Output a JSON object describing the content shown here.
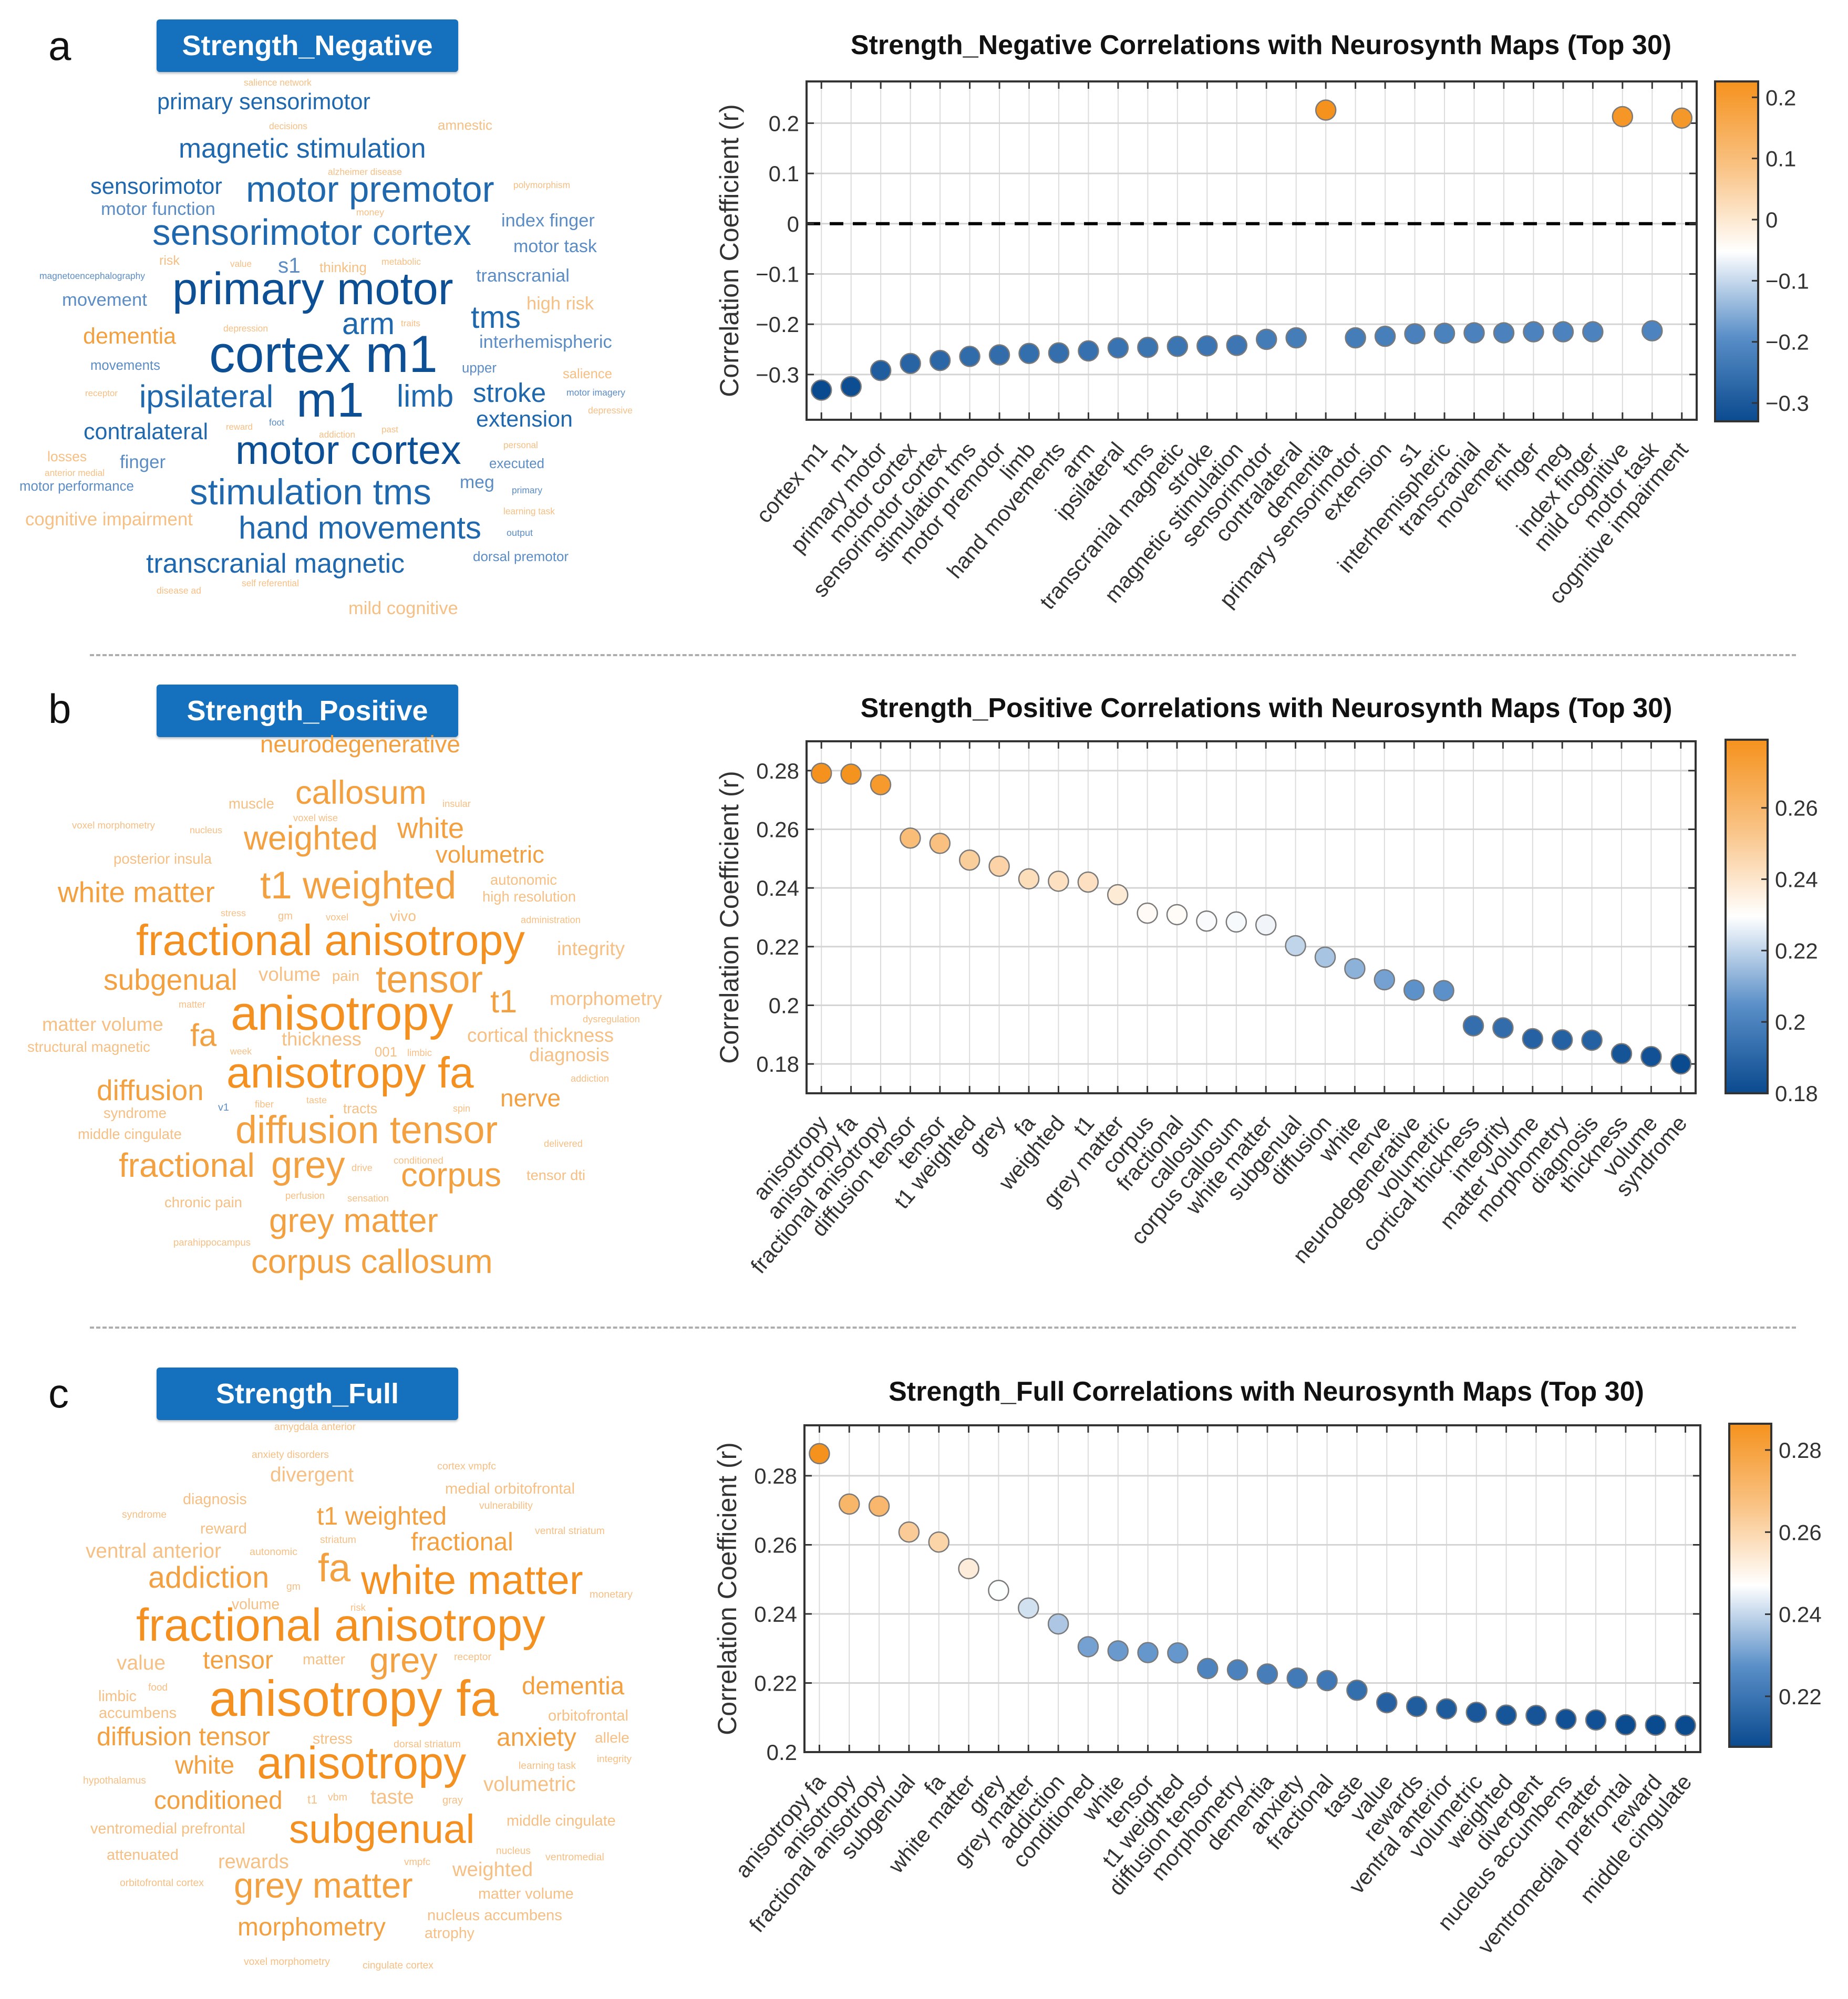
{
  "panels": [
    {
      "letter": "a",
      "badge": "Strength_Negative",
      "cloud": {
        "words": [
          [
            "salience network",
            "o"
          ],
          [
            "primary sensorimotor",
            "b"
          ],
          [
            "decisions",
            "o"
          ],
          [
            "amnestic",
            "o"
          ],
          [
            "magnetic stimulation",
            "b"
          ],
          [
            "alzheimer disease",
            "o"
          ],
          [
            "sensorimotor",
            "b"
          ],
          [
            "motor premotor",
            "b"
          ],
          [
            "polymorphism",
            "o"
          ],
          [
            "motor function",
            "b"
          ],
          [
            "money",
            "o"
          ],
          [
            "index finger",
            "b"
          ],
          [
            "sensorimotor cortex",
            "b"
          ],
          [
            "motor task",
            "b"
          ],
          [
            "risk",
            "o"
          ],
          [
            "value",
            "o"
          ],
          [
            "s1",
            "b"
          ],
          [
            "thinking",
            "o"
          ],
          [
            "metabolic",
            "o"
          ],
          [
            "magnetoencephalography",
            "b"
          ],
          [
            "transcranial",
            "b"
          ],
          [
            "primary motor",
            "b"
          ],
          [
            "movement",
            "b"
          ],
          [
            "high risk",
            "o"
          ],
          [
            "tms",
            "b"
          ],
          [
            "arm",
            "b"
          ],
          [
            "traits",
            "o"
          ],
          [
            "depression",
            "o"
          ],
          [
            "dementia",
            "o"
          ],
          [
            "interhemispheric",
            "b"
          ],
          [
            "cortex m1",
            "b"
          ],
          [
            "movements",
            "b"
          ],
          [
            "upper",
            "b"
          ],
          [
            "salience",
            "o"
          ],
          [
            "receptor",
            "o"
          ],
          [
            "ipsilateral",
            "b"
          ],
          [
            "m1",
            "b"
          ],
          [
            "limb",
            "b"
          ],
          [
            "stroke",
            "b"
          ],
          [
            "motor imagery",
            "b"
          ],
          [
            "depressive",
            "o"
          ],
          [
            "extension",
            "b"
          ],
          [
            "contralateral",
            "b"
          ],
          [
            "foot",
            "b"
          ],
          [
            "reward",
            "o"
          ],
          [
            "past",
            "o"
          ],
          [
            "addiction",
            "o"
          ],
          [
            "personal",
            "o"
          ],
          [
            "motor cortex",
            "b"
          ],
          [
            "losses",
            "o"
          ],
          [
            "finger",
            "b"
          ],
          [
            "executed",
            "b"
          ],
          [
            "anterior medial",
            "o"
          ],
          [
            "meg",
            "b"
          ],
          [
            "motor performance",
            "b"
          ],
          [
            "stimulation tms",
            "b"
          ],
          [
            "primary",
            "b"
          ],
          [
            "learning task",
            "o"
          ],
          [
            "cognitive impairment",
            "o"
          ],
          [
            "hand movements",
            "b"
          ],
          [
            "output",
            "b"
          ],
          [
            "dorsal premotor",
            "b"
          ],
          [
            "transcranial magnetic",
            "b"
          ],
          [
            "self referential",
            "o"
          ],
          [
            "disease ad",
            "o"
          ],
          [
            "mild cognitive",
            "o"
          ]
        ]
      }
    },
    {
      "letter": "b",
      "badge": "Strength_Positive",
      "cloud": {
        "words": [
          [
            "neurodegenerative",
            "o"
          ],
          [
            "callosum",
            "o"
          ],
          [
            "muscle",
            "o"
          ],
          [
            "insular",
            "o"
          ],
          [
            "voxel wise",
            "o"
          ],
          [
            "voxel morphometry",
            "o"
          ],
          [
            "nucleus",
            "o"
          ],
          [
            "weighted",
            "o"
          ],
          [
            "white",
            "o"
          ],
          [
            "volumetric",
            "o"
          ],
          [
            "posterior insula",
            "o"
          ],
          [
            "t1 weighted",
            "o"
          ],
          [
            "autonomic",
            "o"
          ],
          [
            "high resolution",
            "o"
          ],
          [
            "white matter",
            "o"
          ],
          [
            "stress",
            "o"
          ],
          [
            "gm",
            "o"
          ],
          [
            "voxel",
            "o"
          ],
          [
            "vivo",
            "o"
          ],
          [
            "administration",
            "o"
          ],
          [
            "fractional anisotropy",
            "o"
          ],
          [
            "integrity",
            "o"
          ],
          [
            "subgenual",
            "o"
          ],
          [
            "volume",
            "o"
          ],
          [
            "pain",
            "o"
          ],
          [
            "tensor",
            "o"
          ],
          [
            "t1",
            "o"
          ],
          [
            "morphometry",
            "o"
          ],
          [
            "matter",
            "o"
          ],
          [
            "anisotropy",
            "o"
          ],
          [
            "dysregulation",
            "o"
          ],
          [
            "matter volume",
            "o"
          ],
          [
            "fa",
            "o"
          ],
          [
            "structural magnetic",
            "o"
          ],
          [
            "thickness",
            "o"
          ],
          [
            "cortical thickness",
            "o"
          ],
          [
            "001",
            "o"
          ],
          [
            "limbic",
            "o"
          ],
          [
            "week",
            "o"
          ],
          [
            "diagnosis",
            "o"
          ],
          [
            "anisotropy fa",
            "o"
          ],
          [
            "addiction",
            "o"
          ],
          [
            "diffusion",
            "o"
          ],
          [
            "nerve",
            "o"
          ],
          [
            "v1",
            "b"
          ],
          [
            "fiber",
            "o"
          ],
          [
            "taste",
            "o"
          ],
          [
            "tracts",
            "o"
          ],
          [
            "spin",
            "o"
          ],
          [
            "syndrome",
            "o"
          ],
          [
            "middle cingulate",
            "o"
          ],
          [
            "diffusion tensor",
            "o"
          ],
          [
            "delivered",
            "o"
          ],
          [
            "fractional",
            "o"
          ],
          [
            "grey",
            "o"
          ],
          [
            "drive",
            "o"
          ],
          [
            "conditioned",
            "o"
          ],
          [
            "corpus",
            "o"
          ],
          [
            "tensor dti",
            "o"
          ],
          [
            "perfusion",
            "o"
          ],
          [
            "sensation",
            "o"
          ],
          [
            "chronic pain",
            "o"
          ],
          [
            "grey matter",
            "o"
          ],
          [
            "parahippocampus",
            "o"
          ],
          [
            "corpus callosum",
            "o"
          ]
        ]
      }
    },
    {
      "letter": "c",
      "badge": "Strength_Full",
      "cloud": {
        "words": [
          [
            "amygdala anterior",
            "o"
          ],
          [
            "anxiety disorders",
            "o"
          ],
          [
            "cortex vmpfc",
            "o"
          ],
          [
            "divergent",
            "o"
          ],
          [
            "medial orbitofrontal",
            "o"
          ],
          [
            "diagnosis",
            "o"
          ],
          [
            "vulnerability",
            "o"
          ],
          [
            "syndrome",
            "o"
          ],
          [
            "t1 weighted",
            "o"
          ],
          [
            "reward",
            "o"
          ],
          [
            "ventral striatum",
            "o"
          ],
          [
            "striatum",
            "o"
          ],
          [
            "fractional",
            "o"
          ],
          [
            "ventral anterior",
            "o"
          ],
          [
            "autonomic",
            "o"
          ],
          [
            "addiction",
            "o"
          ],
          [
            "fa",
            "o"
          ],
          [
            "white matter",
            "o"
          ],
          [
            "gm",
            "o"
          ],
          [
            "monetary",
            "o"
          ],
          [
            "volume",
            "o"
          ],
          [
            "risk",
            "o"
          ],
          [
            "fractional anisotropy",
            "o"
          ],
          [
            "value",
            "o"
          ],
          [
            "tensor",
            "o"
          ],
          [
            "matter",
            "o"
          ],
          [
            "grey",
            "o"
          ],
          [
            "receptor",
            "o"
          ],
          [
            "food",
            "o"
          ],
          [
            "limbic",
            "o"
          ],
          [
            "anisotropy fa",
            "o"
          ],
          [
            "dementia",
            "o"
          ],
          [
            "accumbens",
            "o"
          ],
          [
            "orbitofrontal",
            "o"
          ],
          [
            "diffusion tensor",
            "o"
          ],
          [
            "stress",
            "o"
          ],
          [
            "dorsal striatum",
            "o"
          ],
          [
            "anxiety",
            "o"
          ],
          [
            "allele",
            "o"
          ],
          [
            "integrity",
            "o"
          ],
          [
            "white",
            "o"
          ],
          [
            "anisotropy",
            "o"
          ],
          [
            "learning task",
            "o"
          ],
          [
            "hypothalamus",
            "o"
          ],
          [
            "volumetric",
            "o"
          ],
          [
            "conditioned",
            "o"
          ],
          [
            "t1",
            "o"
          ],
          [
            "vbm",
            "o"
          ],
          [
            "taste",
            "o"
          ],
          [
            "gray",
            "o"
          ],
          [
            "middle cingulate",
            "o"
          ],
          [
            "ventromedial prefrontal",
            "o"
          ],
          [
            "subgenual",
            "o"
          ],
          [
            "nucleus",
            "o"
          ],
          [
            "ventromedial",
            "o"
          ],
          [
            "attenuated",
            "o"
          ],
          [
            "rewards",
            "o"
          ],
          [
            "vmpfc",
            "o"
          ],
          [
            "weighted",
            "o"
          ],
          [
            "orbitofrontal cortex",
            "o"
          ],
          [
            "grey matter",
            "o"
          ],
          [
            "matter volume",
            "o"
          ],
          [
            "nucleus accumbens",
            "o"
          ],
          [
            "morphometry",
            "o"
          ],
          [
            "atrophy",
            "o"
          ],
          [
            "voxel morphometry",
            "o"
          ],
          [
            "cingulate cortex",
            "o"
          ]
        ]
      }
    }
  ],
  "colors": {
    "badge": "#1570bd",
    "blue_end": "#0a4a8f",
    "orange_end": "#f5921e",
    "word_blue": "#1f68ae",
    "word_orange": "#f3a040"
  },
  "chart_data": [
    {
      "type": "scatter",
      "title": "Strength_Negative Correlations with Neurosynth Maps (Top 30)",
      "xlabel": "",
      "ylabel": "Correlation Coefficient (r)",
      "categories": [
        "cortex m1",
        "m1",
        "primary motor",
        "motor cortex",
        "sensorimotor cortex",
        "stimulation tms",
        "motor premotor",
        "limb",
        "hand movements",
        "arm",
        "ipsilateral",
        "tms",
        "transcranial magnetic",
        "stroke",
        "magnetic stimulation",
        "sensorimotor",
        "contralateral",
        "dementia",
        "primary sensorimotor",
        "extension",
        "s1",
        "interhemispheric",
        "transcranial",
        "movement",
        "finger",
        "meg",
        "index finger",
        "mild cognitive",
        "motor task",
        "cognitive impairment"
      ],
      "values": [
        -0.331,
        -0.324,
        -0.292,
        -0.278,
        -0.272,
        -0.264,
        -0.261,
        -0.258,
        -0.257,
        -0.253,
        -0.247,
        -0.246,
        -0.244,
        -0.243,
        -0.242,
        -0.23,
        -0.227,
        0.226,
        -0.227,
        -0.224,
        -0.219,
        -0.218,
        -0.217,
        -0.217,
        -0.215,
        -0.215,
        -0.215,
        0.213,
        -0.213,
        0.21
      ],
      "ylim": [
        -0.39,
        0.283
      ],
      "yticks": [
        -0.3,
        -0.2,
        -0.1,
        0,
        0.1,
        0.2
      ],
      "ytick_labels": [
        "−0.3",
        "−0.2",
        "−0.1",
        "0",
        "0.1",
        "0.2"
      ],
      "reference_line": 0,
      "grid": true,
      "colorbar": {
        "range": [
          -0.33,
          0.226
        ],
        "ticks": [
          -0.3,
          -0.2,
          -0.1,
          0,
          0.1,
          0.2
        ],
        "tick_labels": [
          "−0.3",
          "−0.2",
          "−0.1",
          "0",
          "0.1",
          "0.2"
        ],
        "placement": "right"
      }
    },
    {
      "type": "scatter",
      "title": "Strength_Positive Correlations with Neurosynth Maps (Top 30)",
      "xlabel": "",
      "ylabel": "Correlation Coefficient (r)",
      "categories": [
        "anisotropy",
        "anisotropy fa",
        "fractional anisotropy",
        "diffusion tensor",
        "tensor",
        "t1 weighted",
        "grey",
        "fa",
        "weighted",
        "t1",
        "grey matter",
        "corpus",
        "fractional",
        "callosum",
        "corpus callosum",
        "white matter",
        "subgenual",
        "diffusion",
        "white",
        "nerve",
        "neurodegenerative",
        "volumetric",
        "cortical thickness",
        "integrity",
        "matter volume",
        "morphometry",
        "diagnosis",
        "thickness",
        "volume",
        "syndrome"
      ],
      "values": [
        0.2791,
        0.2788,
        0.2752,
        0.257,
        0.2552,
        0.2495,
        0.2474,
        0.2431,
        0.2423,
        0.242,
        0.2377,
        0.2314,
        0.2309,
        0.2287,
        0.2284,
        0.2274,
        0.2203,
        0.2164,
        0.2125,
        0.2087,
        0.2052,
        0.205,
        0.193,
        0.1923,
        0.1886,
        0.1882,
        0.1881,
        0.1835,
        0.1825,
        0.18
      ],
      "ylim": [
        0.17,
        0.29
      ],
      "yticks": [
        0.18,
        0.2,
        0.22,
        0.24,
        0.26,
        0.28
      ],
      "ytick_labels": [
        "0.18",
        "0.2",
        "0.22",
        "0.24",
        "0.26",
        "0.28"
      ],
      "grid": true,
      "colorbar": {
        "range": [
          0.18,
          0.2791
        ],
        "ticks": [
          0.18,
          0.2,
          0.22,
          0.24,
          0.26
        ],
        "tick_labels": [
          "0.18",
          "0.2",
          "0.22",
          "0.24",
          "0.26"
        ],
        "placement": "right"
      }
    },
    {
      "type": "scatter",
      "title": "Strength_Full Correlations with Neurosynth Maps (Top 30)",
      "xlabel": "",
      "ylabel": "Correlation Coefficient (r)",
      "categories": [
        "anisotropy fa",
        "anisotropy",
        "fractional anisotropy",
        "subgenual",
        "fa",
        "white matter",
        "grey",
        "grey matter",
        "addiction",
        "conditioned",
        "white",
        "tensor",
        "t1 weighted",
        "diffusion tensor",
        "morphometry",
        "dementia",
        "anxiety",
        "fractional",
        "taste",
        "value",
        "rewards",
        "ventral anterior",
        "volumetric",
        "weighted",
        "divergent",
        "nucleus accumbens",
        "matter",
        "ventromedial prefrontal",
        "reward",
        "middle cingulate"
      ],
      "values": [
        0.2864,
        0.2718,
        0.2712,
        0.2637,
        0.2608,
        0.2531,
        0.2468,
        0.2417,
        0.2371,
        0.2305,
        0.2293,
        0.2288,
        0.2287,
        0.2242,
        0.2238,
        0.2226,
        0.2214,
        0.2207,
        0.2179,
        0.2143,
        0.2132,
        0.2125,
        0.2115,
        0.2107,
        0.2106,
        0.2095,
        0.2093,
        0.2079,
        0.2078,
        0.2077
      ],
      "ylim": [
        0.2,
        0.2946
      ],
      "yticks": [
        0.2,
        0.22,
        0.24,
        0.26,
        0.28
      ],
      "ytick_labels": [
        "0.2",
        "0.22",
        "0.24",
        "0.26",
        "0.28"
      ],
      "grid": true,
      "colorbar": {
        "range": [
          0.2077,
          0.2864
        ],
        "ticks": [
          0.22,
          0.24,
          0.26,
          0.28
        ],
        "tick_labels": [
          "0.22",
          "0.24",
          "0.26",
          "0.28"
        ],
        "placement": "right"
      }
    }
  ]
}
